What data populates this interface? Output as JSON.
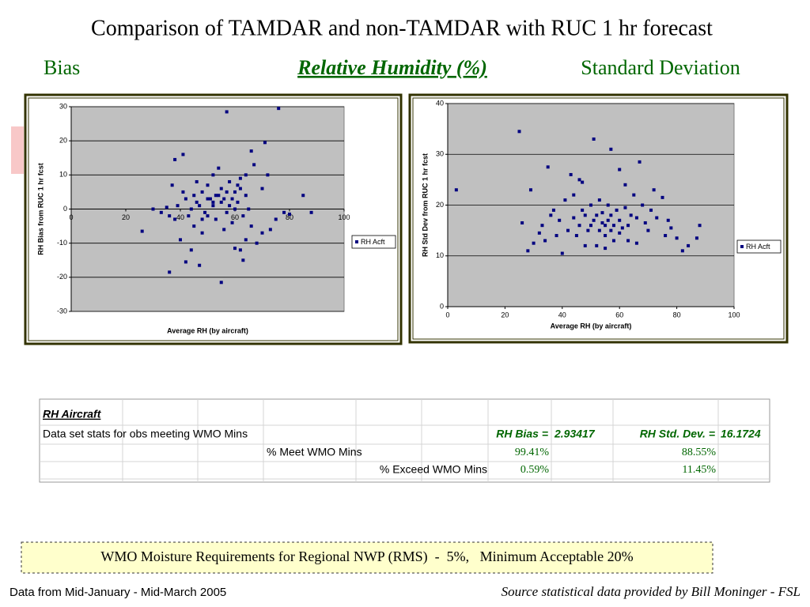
{
  "header": {
    "title": "Comparison of TAMDAR and non-TAMDAR with RUC 1 hr forecast",
    "left": "Bias",
    "center": "Relative Humidity (%)",
    "right": "Standard Deviation"
  },
  "chart_data": [
    {
      "type": "scatter",
      "xlabel": "Average RH (by aircraft)",
      "ylabel": "RH Bias from RUC 1 hr fcst",
      "xlim": [
        0,
        100
      ],
      "xticks": [
        0,
        20,
        40,
        60,
        80,
        100
      ],
      "ylim": [
        -30,
        30
      ],
      "yticks": [
        -30,
        -20,
        -10,
        0,
        10,
        20,
        30
      ],
      "grid": true,
      "legend": "right",
      "series": [
        {
          "name": "RH Acft",
          "color": "#000080",
          "x": [
            76,
            57,
            71,
            26,
            36,
            55,
            41,
            38,
            63,
            62,
            60,
            47,
            42,
            88,
            85,
            80,
            78,
            70,
            73,
            68,
            75,
            66,
            67,
            72,
            70,
            30,
            33,
            35,
            38,
            40,
            44,
            45,
            48,
            50,
            52,
            53,
            55,
            56,
            58,
            60,
            61,
            62,
            64,
            65,
            50,
            48,
            46,
            44,
            42,
            54,
            52,
            57,
            59,
            63,
            66,
            49,
            51,
            53,
            47,
            45,
            43,
            58,
            56,
            60,
            62,
            64,
            39,
            36,
            41,
            37,
            55,
            54,
            57,
            59,
            61,
            50,
            52,
            48,
            46,
            64
          ],
          "values": [
            29.5,
            28.5,
            19.5,
            -6.5,
            -18.5,
            -21.5,
            16,
            14.5,
            -15,
            -12,
            -11.5,
            -16.5,
            -15.5,
            -1,
            4,
            -1.5,
            -1,
            -7,
            -6,
            -10,
            -3,
            17,
            13,
            10,
            6,
            0,
            -1,
            0.5,
            -3,
            -9,
            -12,
            -5,
            -7,
            -2,
            1,
            4,
            6,
            3,
            8,
            5,
            2,
            9,
            4,
            0,
            7,
            5,
            2,
            0,
            3,
            12,
            10,
            -1,
            -4,
            -2,
            -5,
            -1,
            3,
            -3,
            1,
            4,
            -2,
            1,
            -6,
            0,
            6,
            10,
            1,
            -2,
            5,
            7,
            2,
            4,
            5,
            3,
            7,
            3,
            2,
            -3,
            8,
            -9
          ]
        }
      ]
    },
    {
      "type": "scatter",
      "xlabel": "Average RH (by aircraft)",
      "ylabel": "RH Std Dev from RUC 1 hr fcst",
      "xlim": [
        0,
        100
      ],
      "xticks": [
        0,
        20,
        40,
        60,
        80,
        100
      ],
      "ylim": [
        0,
        40
      ],
      "yticks": [
        0,
        10,
        20,
        30,
        40
      ],
      "grid": true,
      "legend": "right",
      "series": [
        {
          "name": "RH Acft",
          "color": "#000080",
          "x": [
            3,
            25,
            51,
            57,
            29,
            26,
            35,
            37,
            28,
            30,
            34,
            40,
            43,
            47,
            44,
            60,
            67,
            72,
            75,
            77,
            80,
            82,
            84,
            87,
            88,
            70,
            68,
            65,
            62,
            50,
            48,
            46,
            45,
            42,
            39,
            38,
            52,
            55,
            58,
            60,
            63,
            66,
            53,
            54,
            56,
            57,
            58,
            59,
            55,
            52,
            50,
            49,
            51,
            47,
            44,
            61,
            64,
            69,
            73,
            76,
            78,
            41,
            36,
            33,
            32,
            46,
            63,
            66,
            55,
            57,
            54,
            56,
            60,
            62,
            53,
            48,
            71
          ],
          "values": [
            23,
            34.5,
            33,
            31,
            23,
            16.5,
            27.5,
            19,
            11,
            12.5,
            13,
            10.5,
            26,
            24.5,
            22,
            27,
            28.5,
            23,
            21.5,
            17,
            13.5,
            11,
            12,
            13.5,
            16,
            15,
            20,
            22,
            24,
            20,
            18,
            16,
            14,
            15,
            17,
            14,
            12,
            11.5,
            13,
            14.5,
            16,
            17.5,
            15,
            16.5,
            17,
            18,
            16,
            19,
            14,
            18,
            16,
            15,
            17,
            19,
            17.5,
            15.5,
            18,
            16.5,
            17.5,
            14,
            15.5,
            21,
            18,
            16,
            14.5,
            25,
            13,
            12.5,
            16,
            15,
            18.5,
            20,
            17,
            19.5,
            21,
            12,
            19
          ]
        }
      ]
    }
  ],
  "table": {
    "title": "RH Aircraft",
    "rows": [
      [
        "Data set stats for obs meeting WMO Mins",
        "RH Bias =",
        "2.93417",
        "RH Std. Dev. =",
        "16.1724"
      ],
      [
        "% Meet WMO Mins",
        "99.41%",
        "88.55%"
      ],
      [
        "% Exceed WMO Mins",
        "0.59%",
        "11.45%"
      ]
    ]
  },
  "note": "WMO Moisture Requirements for Regional NWP (RMS)  -  5%,   Minimum Acceptable 20%",
  "footer": {
    "left": "Data from Mid-January - Mid-March 2005",
    "right": "Source statistical data provided by Bill Moninger - FSL"
  }
}
